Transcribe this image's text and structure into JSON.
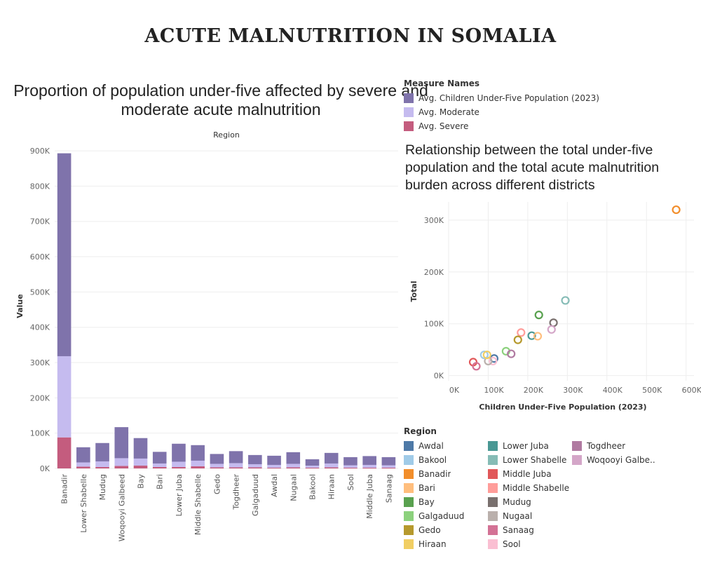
{
  "page": {
    "title": "ACUTE MALNUTRITION IN SOMALIA"
  },
  "chart_data": [
    {
      "type": "bar",
      "stacked": true,
      "title": "Proportion of population under-five affected by severe and moderate acute malnutrition",
      "column_header": "Region",
      "xlabel": "",
      "ylabel": "Value",
      "ylim": [
        0,
        920000
      ],
      "yticks": [
        0,
        100000,
        200000,
        300000,
        400000,
        500000,
        600000,
        700000,
        800000,
        900000
      ],
      "ytick_labels": [
        "0K",
        "100K",
        "200K",
        "300K",
        "400K",
        "500K",
        "600K",
        "700K",
        "800K",
        "900K"
      ],
      "grid": true,
      "categories": [
        "Banadir",
        "Lower Shabelle",
        "Mudug",
        "Woqooyi Galbeed",
        "Bay",
        "Bari",
        "Lower Juba",
        "Middle Shabelle",
        "Gedo",
        "Togdheer",
        "Galgaduud",
        "Awdal",
        "Nugaal",
        "Bakool",
        "Hiraan",
        "Sool",
        "Middle Juba",
        "Sanaag"
      ],
      "series": [
        {
          "name": "Avg. Severe",
          "color": "#c45c7e",
          "values": [
            88000,
            5000,
            4000,
            7000,
            8000,
            4000,
            4000,
            6000,
            3000,
            3000,
            3000,
            2000,
            3000,
            2000,
            3000,
            2000,
            2000,
            2000
          ]
        },
        {
          "name": "Avg. Moderate",
          "color": "#c5bbef",
          "values": [
            230000,
            12000,
            16000,
            22000,
            20000,
            10000,
            15000,
            16000,
            10000,
            12000,
            9000,
            8000,
            10000,
            6000,
            11000,
            7000,
            8000,
            7000
          ]
        },
        {
          "name": "Avg. Children Under-Five Population (2023)",
          "color": "#7f73ab",
          "values": [
            575000,
            43000,
            52000,
            88000,
            58000,
            33000,
            51000,
            44000,
            28000,
            34000,
            26000,
            26000,
            33000,
            18000,
            30000,
            23000,
            25000,
            23000
          ]
        }
      ]
    },
    {
      "type": "scatter",
      "title": "Relationship between the total under-five population and the total acute malnutrition burden across different districts",
      "xlabel": "Children Under-Five Population (2023)",
      "ylabel": "Total",
      "xlim": [
        0,
        620000
      ],
      "ylim": [
        -10000,
        335000
      ],
      "xticks": [
        0,
        100000,
        200000,
        300000,
        400000,
        500000,
        600000
      ],
      "xtick_labels": [
        "0K",
        "100K",
        "200K",
        "300K",
        "400K",
        "500K",
        "600K"
      ],
      "yticks": [
        0,
        100000,
        200000,
        300000
      ],
      "ytick_labels": [
        "0K",
        "100K",
        "200K",
        "300K"
      ],
      "grid": true,
      "marker": "open-circle",
      "points": [
        {
          "region": "Banadir",
          "x": 575000,
          "y": 320000
        },
        {
          "region": "Lower Shabelle",
          "x": 295000,
          "y": 145000
        },
        {
          "region": "Mudug",
          "x": 265000,
          "y": 102000
        },
        {
          "region": "Woqooyi Galbeed",
          "x": 260000,
          "y": 89000
        },
        {
          "region": "Bay",
          "x": 228000,
          "y": 117000
        },
        {
          "region": "Lower Juba",
          "x": 210000,
          "y": 77000
        },
        {
          "region": "Bari",
          "x": 225000,
          "y": 76000
        },
        {
          "region": "Middle Shabelle",
          "x": 183000,
          "y": 83000
        },
        {
          "region": "Gedo",
          "x": 175000,
          "y": 69000
        },
        {
          "region": "Galgaduud",
          "x": 145000,
          "y": 47000
        },
        {
          "region": "Togdheer",
          "x": 158000,
          "y": 42000
        },
        {
          "region": "Awdal",
          "x": 115000,
          "y": 33000
        },
        {
          "region": "Sool",
          "x": 112000,
          "y": 28000
        },
        {
          "region": "Nugaal",
          "x": 100000,
          "y": 28000
        },
        {
          "region": "Bakool",
          "x": 90000,
          "y": 40000
        },
        {
          "region": "Hiraan",
          "x": 97000,
          "y": 40000
        },
        {
          "region": "Middle Juba",
          "x": 62000,
          "y": 26000
        },
        {
          "region": "Sanaag",
          "x": 70000,
          "y": 18000
        }
      ]
    }
  ],
  "legends": {
    "measure": {
      "title": "Measure Names",
      "items": [
        {
          "label": "Avg. Children Under-Five Population (2023)",
          "color": "#7f73ab"
        },
        {
          "label": "Avg. Moderate",
          "color": "#c5bbef"
        },
        {
          "label": "Avg. Severe",
          "color": "#c45c7e"
        }
      ]
    },
    "region": {
      "title": "Region",
      "items": [
        {
          "label": "Awdal",
          "color": "#4e79a7"
        },
        {
          "label": "Bakool",
          "color": "#a0cbe8"
        },
        {
          "label": "Banadir",
          "color": "#f28e2b"
        },
        {
          "label": "Bari",
          "color": "#ffbe7d"
        },
        {
          "label": "Bay",
          "color": "#59a14f"
        },
        {
          "label": "Galgaduud",
          "color": "#8cd17d"
        },
        {
          "label": "Gedo",
          "color": "#b6992d"
        },
        {
          "label": "Hiraan",
          "color": "#f1ce63"
        },
        {
          "label": "Lower Juba",
          "color": "#499894"
        },
        {
          "label": "Lower Shabelle",
          "color": "#86bcb6"
        },
        {
          "label": "Middle Juba",
          "color": "#e15759"
        },
        {
          "label": "Middle Shabelle",
          "color": "#ff9d9a"
        },
        {
          "label": "Mudug",
          "color": "#79706e"
        },
        {
          "label": "Nugaal",
          "color": "#bab0ac"
        },
        {
          "label": "Sanaag",
          "color": "#d37295"
        },
        {
          "label": "Sool",
          "color": "#fabfd2"
        },
        {
          "label": "Togdheer",
          "color": "#b07aa1"
        },
        {
          "label": "Woqooyi Galbe..",
          "color": "#d4a6c8"
        }
      ]
    }
  }
}
